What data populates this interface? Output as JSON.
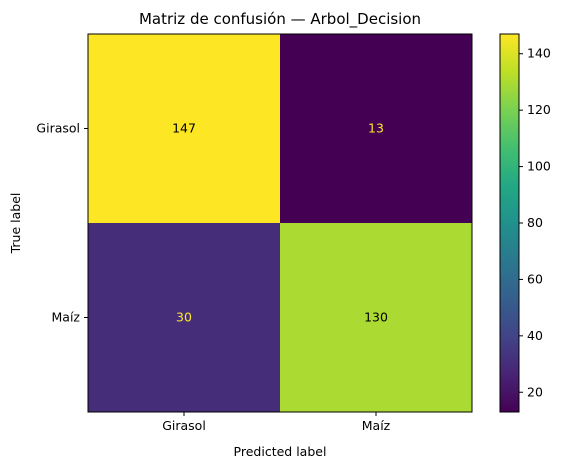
{
  "chart_data": {
    "type": "heatmap",
    "title": "Matriz de confusión — Arbol_Decision",
    "xlabel": "Predicted label",
    "ylabel": "True label",
    "x_categories": [
      "Girasol",
      "Maíz"
    ],
    "y_categories": [
      "Girasol",
      "Maíz"
    ],
    "matrix": [
      [
        147,
        13
      ],
      [
        30,
        130
      ]
    ],
    "colormap": "viridis",
    "colorbar": {
      "min": 13,
      "max": 147,
      "ticks": [
        20,
        40,
        60,
        80,
        100,
        120,
        140
      ]
    }
  }
}
